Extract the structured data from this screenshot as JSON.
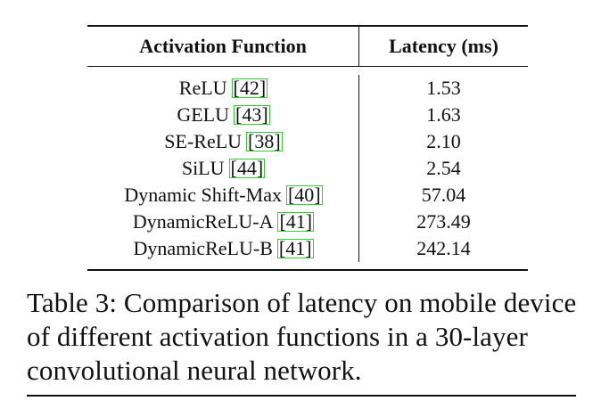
{
  "table": {
    "headers": {
      "function": "Activation Function",
      "latency": "Latency (ms)"
    },
    "rows": [
      {
        "name": "ReLU",
        "cite": "[42]",
        "latency": "1.53"
      },
      {
        "name": "GELU",
        "cite": "[43]",
        "latency": "1.63"
      },
      {
        "name": "SE-ReLU",
        "cite": "[38]",
        "latency": "2.10"
      },
      {
        "name": "SiLU",
        "cite": "[44]",
        "latency": "2.54"
      },
      {
        "name": "Dynamic Shift-Max",
        "cite": "[40]",
        "latency": "57.04"
      },
      {
        "name": "DynamicReLU-A",
        "cite": "[41]",
        "latency": "273.49"
      },
      {
        "name": "DynamicReLU-B",
        "cite": "[41]",
        "latency": "242.14"
      }
    ]
  },
  "caption": {
    "text": "Table 3: Comparison of latency on mobile device of different activation functions in a 30-layer convolutional neural network."
  },
  "colors": {
    "citation_box": "#33cc33",
    "text": "#111111"
  }
}
